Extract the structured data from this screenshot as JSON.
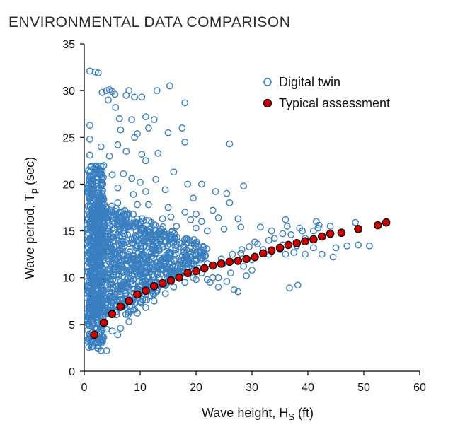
{
  "chart_data": {
    "type": "scatter",
    "title": "ENVIRONMENTAL DATA COMPARISON",
    "xlabel": "Wave height, H",
    "xlabel_sub": "S",
    "xlabel_unit": " (ft)",
    "ylabel": "Wave period, T",
    "ylabel_sub": "p",
    "ylabel_unit": " (sec)",
    "xlim": [
      0,
      60
    ],
    "ylim": [
      0,
      35
    ],
    "xticks": [
      0,
      10,
      20,
      30,
      40,
      50,
      60
    ],
    "yticks": [
      0,
      5,
      10,
      15,
      20,
      25,
      30,
      35
    ],
    "grid": false,
    "legend_position": "top-right",
    "series": [
      {
        "name": "Digital twin",
        "marker": "hollow-circle",
        "color": "#3a7fc0",
        "points": [
          [
            1,
            32.1
          ],
          [
            2,
            32
          ],
          [
            2.5,
            31.9
          ],
          [
            4,
            30
          ],
          [
            4.5,
            30.1
          ],
          [
            5,
            29.9
          ],
          [
            5.5,
            29.6
          ],
          [
            3.2,
            29.8
          ],
          [
            4.3,
            29
          ],
          [
            5.6,
            28.2
          ],
          [
            6.3,
            27
          ],
          [
            7.5,
            29.5
          ],
          [
            8,
            30
          ],
          [
            9,
            29.3
          ],
          [
            10.3,
            29.3
          ],
          [
            13,
            30
          ],
          [
            15.3,
            30.5
          ],
          [
            18,
            28.7
          ],
          [
            11,
            27.2
          ],
          [
            12.5,
            26.9
          ],
          [
            6.5,
            25.8
          ],
          [
            8.5,
            26.9
          ],
          [
            9.5,
            25.4
          ],
          [
            11.5,
            26
          ],
          [
            9,
            25
          ],
          [
            15,
            25.5
          ],
          [
            17.5,
            26
          ],
          [
            18,
            24.5
          ],
          [
            26,
            24.3
          ],
          [
            1,
            26.3
          ],
          [
            1,
            24.8
          ],
          [
            3,
            24
          ],
          [
            4.5,
            23
          ],
          [
            6,
            24.2
          ],
          [
            7.5,
            23.5
          ],
          [
            10.3,
            23.2
          ],
          [
            13.2,
            23.3
          ],
          [
            1,
            23.1
          ],
          [
            3.5,
            22
          ],
          [
            11,
            22.5
          ],
          [
            16,
            21.3
          ],
          [
            5,
            21
          ],
          [
            7,
            21.1
          ],
          [
            8.5,
            20.6
          ],
          [
            10,
            20.2
          ],
          [
            12.8,
            20.5
          ],
          [
            1.5,
            20
          ],
          [
            3,
            19.8
          ],
          [
            6,
            19.6
          ],
          [
            8.8,
            18.9
          ],
          [
            11,
            19.2
          ],
          [
            14.5,
            19.4
          ],
          [
            18.5,
            20
          ],
          [
            21,
            20
          ],
          [
            28.5,
            19.8
          ],
          [
            19.5,
            18.5
          ],
          [
            23.5,
            19.2
          ],
          [
            25.5,
            19
          ],
          [
            3,
            18.5
          ],
          [
            6,
            18
          ],
          [
            9.5,
            17.8
          ],
          [
            11.5,
            17.8
          ],
          [
            15,
            17.5
          ],
          [
            18,
            17
          ],
          [
            20,
            16.8
          ],
          [
            23,
            17.2
          ],
          [
            26,
            18
          ],
          [
            15.5,
            16.5
          ],
          [
            19,
            16.2
          ],
          [
            21,
            16
          ],
          [
            24,
            16.4
          ],
          [
            27.5,
            16.3
          ],
          [
            14,
            16.3
          ],
          [
            16.5,
            15.5
          ],
          [
            20,
            15.3
          ],
          [
            22,
            15
          ],
          [
            25,
            15.2
          ],
          [
            28,
            15.4
          ],
          [
            31.5,
            15.4
          ],
          [
            36,
            16.2
          ],
          [
            41.5,
            16
          ],
          [
            42,
            15.6
          ],
          [
            44,
            15.5
          ],
          [
            48.5,
            15.9
          ],
          [
            36.3,
            15.5
          ],
          [
            38.5,
            15.3
          ],
          [
            41,
            15
          ],
          [
            33.5,
            15
          ],
          [
            35.5,
            14.7
          ],
          [
            39.5,
            14.2
          ],
          [
            33,
            14
          ],
          [
            30.5,
            13.8
          ],
          [
            35.5,
            13.5
          ],
          [
            38,
            13.4
          ],
          [
            41,
            13.2
          ],
          [
            45,
            13.2
          ],
          [
            47,
            13.4
          ],
          [
            49,
            13.5
          ],
          [
            51,
            13.4
          ],
          [
            29.5,
            13.3
          ],
          [
            32,
            13
          ],
          [
            35,
            13
          ],
          [
            37.5,
            12.7
          ],
          [
            39.5,
            12.5
          ],
          [
            42.5,
            12.5
          ],
          [
            44.5,
            12.2
          ],
          [
            28,
            12.6
          ],
          [
            30.5,
            12.3
          ],
          [
            33,
            12.5
          ],
          [
            36,
            12.5
          ],
          [
            30,
            11.9
          ],
          [
            28.5,
            11.2
          ],
          [
            29,
            10.2
          ],
          [
            24.8,
            11.5
          ],
          [
            26.2,
            10.5
          ],
          [
            30,
            10.8
          ],
          [
            23,
            10
          ],
          [
            22.5,
            9.5
          ],
          [
            24,
            9
          ],
          [
            25.5,
            9.6
          ],
          [
            26.8,
            8.7
          ],
          [
            27.5,
            8.5
          ],
          [
            36.7,
            8.9
          ],
          [
            38.2,
            9.2
          ],
          [
            21,
            10.5
          ],
          [
            20,
            9.8
          ],
          [
            20,
            10.8
          ],
          [
            22,
            9.8
          ],
          [
            24,
            10
          ],
          [
            3,
            2.2
          ],
          [
            4,
            2.2
          ],
          [
            2.5,
            2.4
          ],
          [
            1.5,
            2.7
          ],
          [
            1.2,
            2.9
          ],
          [
            6,
            3.9
          ],
          [
            5,
            4.3
          ],
          [
            4,
            4.5
          ],
          [
            6.5,
            4.6
          ],
          [
            3,
            4.9
          ],
          [
            1.2,
            5.5
          ],
          [
            2.2,
            5.8
          ],
          [
            8,
            5.3
          ],
          [
            9.5,
            6.2
          ],
          [
            11,
            6.8
          ],
          [
            12.5,
            7.5
          ],
          [
            14.5,
            8.3
          ],
          [
            16,
            9
          ],
          [
            18,
            9.5
          ],
          [
            19.5,
            10
          ],
          [
            20.5,
            11
          ],
          [
            22,
            11.5
          ],
          [
            24.5,
            12
          ],
          [
            26.5,
            12.5
          ],
          [
            28.2,
            13
          ],
          [
            31,
            13.6
          ],
          [
            34,
            14.2
          ],
          [
            37,
            14.6
          ],
          [
            39,
            15
          ],
          [
            41.8,
            15.3
          ]
        ],
        "dense_regions": [
          {
            "x_range": [
              1,
              22
            ],
            "y_range": [
              6,
              18.5
            ],
            "note": "dense cloud of points"
          },
          {
            "x_range": [
              0.5,
              3.5
            ],
            "y_range": [
              2.5,
              22
            ],
            "note": "dense column near zero wave height"
          }
        ]
      },
      {
        "name": "Typical assessment",
        "marker": "filled-circle",
        "color": "#cc0000",
        "points": [
          [
            1.8,
            3.9
          ],
          [
            3.5,
            5.2
          ],
          [
            5,
            6.1
          ],
          [
            6.5,
            6.9
          ],
          [
            8,
            7.5
          ],
          [
            9.5,
            8.2
          ],
          [
            11,
            8.6
          ],
          [
            12.5,
            9.1
          ],
          [
            14,
            9.4
          ],
          [
            15.5,
            9.7
          ],
          [
            17,
            10
          ],
          [
            18.5,
            10.5
          ],
          [
            20,
            10.7
          ],
          [
            21.5,
            11
          ],
          [
            23,
            11.3
          ],
          [
            24.5,
            11.5
          ],
          [
            26,
            11.7
          ],
          [
            27.5,
            11.8
          ],
          [
            29,
            12
          ],
          [
            30.5,
            12.2
          ],
          [
            32,
            12.6
          ],
          [
            33.5,
            12.9
          ],
          [
            35,
            13.2
          ],
          [
            36.5,
            13.5
          ],
          [
            38,
            13.7
          ],
          [
            39.5,
            13.9
          ],
          [
            41,
            14.1
          ],
          [
            42.5,
            14.4
          ],
          [
            44,
            14.7
          ],
          [
            46,
            14.8
          ],
          [
            49,
            15.2
          ],
          [
            52.5,
            15.6
          ],
          [
            54,
            15.9
          ]
        ]
      }
    ]
  }
}
